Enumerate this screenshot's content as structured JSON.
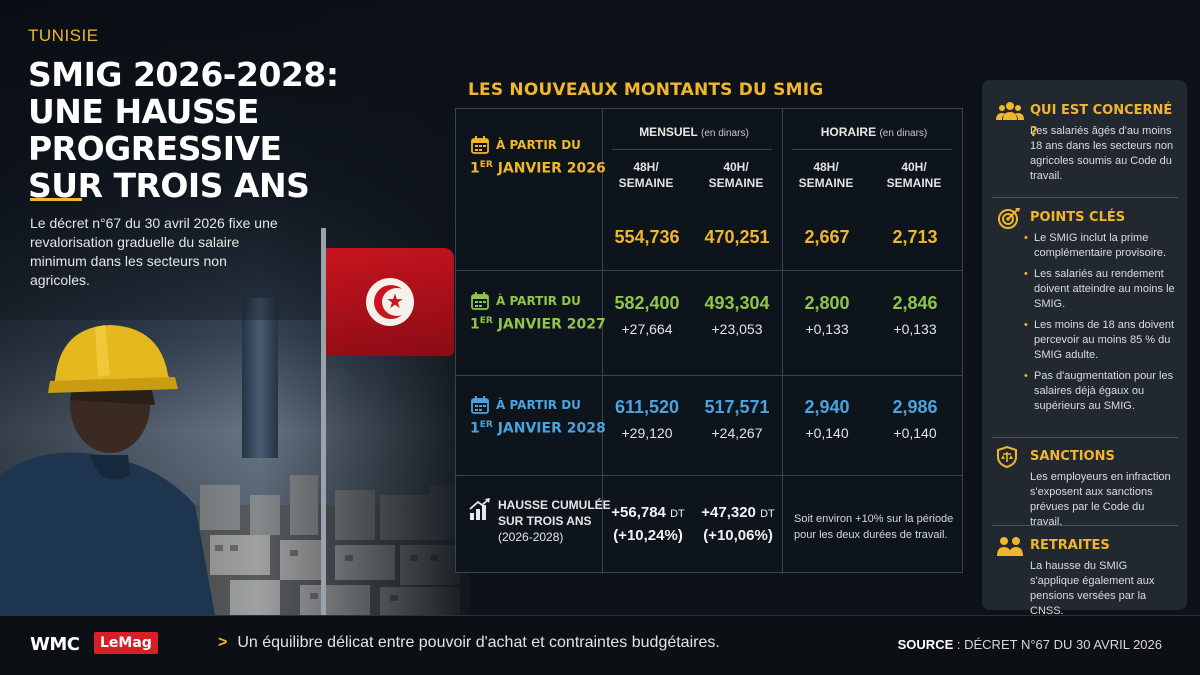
{
  "header": {
    "region": "TUNISIE",
    "title_lines": [
      "SMIG 2026-2028:",
      "UNE HAUSSE PROGRESSIVE",
      "SUR TROIS ANS"
    ],
    "intro": "Le décret n°67 du 30 avril 2026 fixe une revalorisation graduelle du salaire minimum dans les secteurs non agricoles."
  },
  "table": {
    "title": "LES NOUVEAUX MONTANTS DU SMIG",
    "groups": [
      {
        "label": "MENSUEL",
        "unit": "(en dinars)"
      },
      {
        "label": "HORAIRE",
        "unit": "(en dinars)"
      }
    ],
    "subheaders": [
      [
        "48H/",
        "SEMAINE"
      ],
      [
        "40H/",
        "SEMAINE"
      ],
      [
        "48H/",
        "SEMAINE"
      ],
      [
        "40H/",
        "SEMAINE"
      ]
    ],
    "rows": [
      {
        "line1": "À PARTIR DU",
        "ord": "1",
        "sup": "ER",
        "line2": "JANVIER 2026",
        "color": "#f1b52e",
        "values": [
          "554,736",
          "470,251",
          "2,667",
          "2,713"
        ],
        "deltas": []
      },
      {
        "line1": "À PARTIR DU",
        "ord": "1",
        "sup": "ER",
        "line2": "JANVIER 2027",
        "color": "#8fc54a",
        "values": [
          "582,400",
          "493,304",
          "2,800",
          "2,846"
        ],
        "deltas": [
          "+27,664",
          "+23,053",
          "+0,133",
          "+0,133"
        ]
      },
      {
        "line1": "À PARTIR DU",
        "ord": "1",
        "sup": "ER",
        "line2": "JANVIER 2028",
        "color": "#4aa3e0",
        "values": [
          "611,520",
          "517,571",
          "2,940",
          "2,986"
        ],
        "deltas": [
          "+29,120",
          "+24,267",
          "+0,140",
          "+0,140"
        ]
      }
    ],
    "cumulative": {
      "label_lines": [
        "HAUSSE CUMULÉE",
        "SUR TROIS ANS",
        "(2026-2028)"
      ],
      "v1": "+56,784",
      "v1_unit": "DT",
      "p1": "(+10,24%)",
      "v2": "+47,320",
      "v2_unit": "DT",
      "p2": "(+10,06%)",
      "note": "Soit environ +10% sur la période pour les deux durées de travail."
    }
  },
  "panel": {
    "concerned": {
      "title": "QUI EST CONCERNÉ ?",
      "text": "Les salariés âgés d'au moins 18 ans dans les secteurs non agricoles soumis au Code du travail."
    },
    "keypoints": {
      "title": "POINTS CLÉS",
      "items": [
        "Le SMIG inclut la prime complémentaire provisoire.",
        "Les salariés au rendement doivent atteindre au moins le SMIG.",
        "Les moins de 18 ans doivent percevoir au moins 85 % du SMIG adulte.",
        "Pas d'augmentation pour les salaires déjà égaux ou supérieurs au SMIG."
      ]
    },
    "sanctions": {
      "title": "SANCTIONS",
      "text": "Les employeurs en infraction s'exposent aux sanctions prévues par le Code du travail."
    },
    "retirees": {
      "title": "RETRAITES",
      "text": "La hausse du SMIG s'applique également aux pensions versées par la CNSS."
    }
  },
  "footer": {
    "logo": "WMC",
    "logo_tag": "LeMag",
    "ticker_chevron": ">",
    "ticker": "Un équilibre délicat entre pouvoir d'achat et contraintes budgétaires.",
    "source_label": "SOURCE",
    "source_text": ": DÉCRET N°67 DU 30 AVRIL 2026"
  },
  "colors": {
    "accent": "#f1b52e",
    "green": "#8fc54a",
    "blue": "#4aa3e0",
    "flag_red": "#c8151f",
    "logo_red": "#d61f26"
  }
}
